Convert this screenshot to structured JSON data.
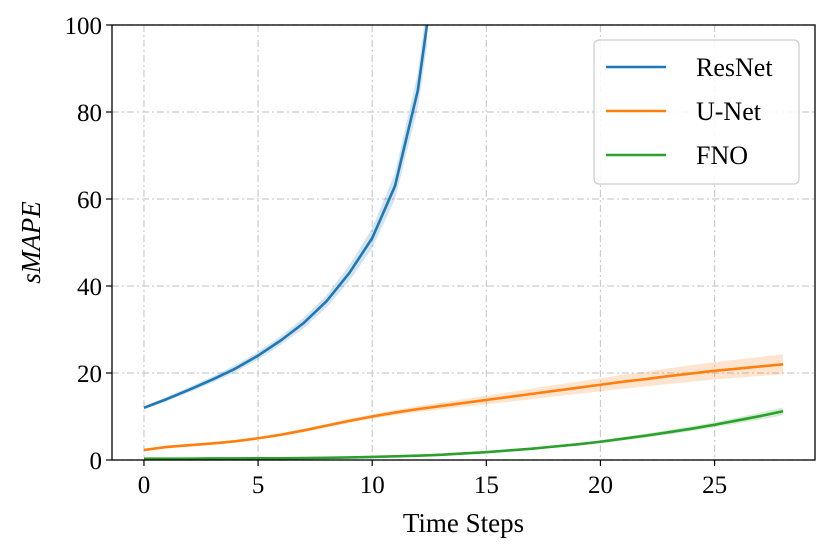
{
  "chart_data": {
    "type": "line",
    "xlabel": "Time Steps",
    "ylabel": "sMAPE",
    "xlim": [
      -1.4,
      29.4
    ],
    "ylim": [
      0,
      100
    ],
    "xticks": [
      0,
      5,
      10,
      15,
      20,
      25
    ],
    "yticks": [
      0,
      20,
      40,
      60,
      80,
      100
    ],
    "grid": true,
    "legend_position": "top-right",
    "x": [
      0,
      1,
      2,
      3,
      4,
      5,
      6,
      7,
      8,
      9,
      10,
      11,
      12,
      12.4
    ],
    "series": [
      {
        "name": "ResNet",
        "color": "#1f77b4",
        "x": [
          0,
          1,
          2,
          3,
          4,
          5,
          6,
          7,
          8,
          9,
          10,
          11,
          12,
          12.4
        ],
        "values": [
          12.0,
          14.0,
          16.2,
          18.5,
          21.0,
          24.0,
          27.5,
          31.5,
          36.5,
          43.0,
          51.0,
          63.0,
          85.0,
          100.0
        ],
        "band": [
          0.4,
          0.5,
          0.6,
          0.7,
          0.8,
          0.9,
          1.0,
          1.2,
          1.4,
          1.8,
          2.3,
          3.0,
          4.0,
          5.0
        ]
      },
      {
        "name": "U-Net",
        "color": "#ff7f0e",
        "x": [
          0,
          1,
          2,
          3,
          4,
          5,
          6,
          7,
          8,
          9,
          10,
          11,
          12,
          13,
          14,
          15,
          16,
          17,
          18,
          19,
          20,
          21,
          22,
          23,
          24,
          25,
          26,
          27,
          28
        ],
        "values": [
          2.3,
          3.0,
          3.4,
          3.8,
          4.3,
          5.0,
          5.8,
          6.8,
          7.9,
          9.0,
          10.0,
          10.9,
          11.7,
          12.4,
          13.1,
          13.8,
          14.5,
          15.2,
          15.9,
          16.6,
          17.3,
          18.0,
          18.6,
          19.3,
          19.9,
          20.5,
          21.0,
          21.5,
          22.0
        ],
        "band": [
          0.3,
          0.3,
          0.3,
          0.3,
          0.3,
          0.3,
          0.4,
          0.4,
          0.4,
          0.5,
          0.5,
          0.6,
          0.7,
          0.8,
          0.9,
          1.0,
          1.1,
          1.2,
          1.3,
          1.4,
          1.5,
          1.6,
          1.7,
          1.8,
          1.9,
          2.0,
          2.1,
          2.2,
          2.3
        ]
      },
      {
        "name": "FNO",
        "color": "#2ca02c",
        "x": [
          0,
          1,
          2,
          3,
          4,
          5,
          6,
          7,
          8,
          9,
          10,
          11,
          12,
          13,
          14,
          15,
          16,
          17,
          18,
          19,
          20,
          21,
          22,
          23,
          24,
          25,
          26,
          27,
          28
        ],
        "values": [
          0.3,
          0.3,
          0.3,
          0.35,
          0.35,
          0.4,
          0.4,
          0.45,
          0.5,
          0.6,
          0.7,
          0.85,
          1.0,
          1.2,
          1.5,
          1.8,
          2.2,
          2.6,
          3.1,
          3.6,
          4.2,
          4.9,
          5.6,
          6.4,
          7.2,
          8.1,
          9.1,
          10.1,
          11.2
        ],
        "band": [
          0.05,
          0.05,
          0.05,
          0.05,
          0.05,
          0.05,
          0.05,
          0.05,
          0.05,
          0.05,
          0.06,
          0.07,
          0.08,
          0.1,
          0.12,
          0.15,
          0.18,
          0.2,
          0.25,
          0.3,
          0.35,
          0.4,
          0.45,
          0.5,
          0.55,
          0.6,
          0.7,
          0.8,
          0.9
        ]
      }
    ]
  }
}
